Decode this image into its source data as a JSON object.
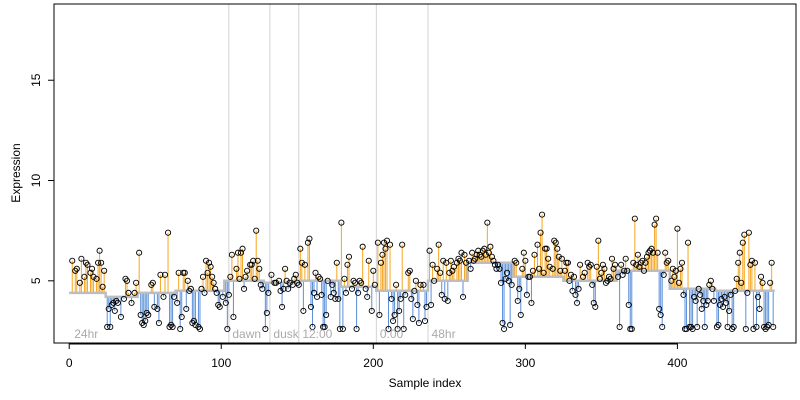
{
  "chart_data": {
    "type": "scatter",
    "title": "",
    "xlabel": "Sample index",
    "ylabel": "Expression",
    "xlim": [
      -10,
      478
    ],
    "ylim": [
      1.9,
      18.8
    ],
    "xticks": [
      0,
      100,
      200,
      300,
      400
    ],
    "yticks": [
      5,
      10,
      15
    ],
    "grid": false,
    "legend": "none",
    "colors": {
      "above": "#f5a623",
      "below": "#5b8fd9",
      "baseline": "#bdbdbd",
      "point_edge": "#000000",
      "annotation_lines": "#d3d3d3",
      "annotation_text": "#aaaaaa"
    },
    "annotations": [
      {
        "label": "24hr",
        "x": 2
      },
      {
        "label": "dawn",
        "x": 106
      },
      {
        "label": "dusk",
        "x": 133
      },
      {
        "label": "12:00",
        "x": 152
      },
      {
        "label": "0:00",
        "x": 203
      },
      {
        "label": "48hr",
        "x": 237
      }
    ],
    "vlines": [
      105,
      132,
      151,
      202,
      236
    ],
    "segments": [
      {
        "x": [
          0,
          24
        ],
        "baseline": 4.4
      },
      {
        "x": [
          24,
          45
        ],
        "baseline": 4.2
      },
      {
        "x": [
          45,
          70
        ],
        "baseline": 4.4
      },
      {
        "x": [
          70,
          102
        ],
        "baseline": 4.5
      },
      {
        "x": [
          102,
          128
        ],
        "baseline": 5.0
      },
      {
        "x": [
          128,
          152
        ],
        "baseline": 4.9
      },
      {
        "x": [
          152,
          178
        ],
        "baseline": 5.0
      },
      {
        "x": [
          178,
          202
        ],
        "baseline": 4.7
      },
      {
        "x": [
          202,
          236
        ],
        "baseline": 4.5
      },
      {
        "x": [
          236,
          262
        ],
        "baseline": 5.0
      },
      {
        "x": [
          262,
          292
        ],
        "baseline": 5.9
      },
      {
        "x": [
          292,
          325
        ],
        "baseline": 5.2
      },
      {
        "x": [
          325,
          360
        ],
        "baseline": 5.0
      },
      {
        "x": [
          360,
          395
        ],
        "baseline": 5.5
      },
      {
        "x": [
          395,
          425
        ],
        "baseline": 4.6
      },
      {
        "x": [
          425,
          464
        ],
        "baseline": 4.5
      }
    ],
    "points": [
      [
        2,
        6.0
      ],
      [
        4,
        5.5
      ],
      [
        5,
        5.6
      ],
      [
        7,
        4.9
      ],
      [
        8,
        6.1
      ],
      [
        10,
        5.2
      ],
      [
        11,
        5.9
      ],
      [
        12,
        5.8
      ],
      [
        14,
        5.4
      ],
      [
        15,
        5.6
      ],
      [
        16,
        5.2
      ],
      [
        18,
        5.1
      ],
      [
        19,
        5.9
      ],
      [
        20,
        6.5
      ],
      [
        21,
        5.9
      ],
      [
        22,
        4.7
      ],
      [
        23,
        5.5
      ],
      [
        25,
        2.7
      ],
      [
        26,
        3.6
      ],
      [
        27,
        2.7
      ],
      [
        28,
        3.8
      ],
      [
        29,
        3.9
      ],
      [
        30,
        3.5
      ],
      [
        31,
        4.0
      ],
      [
        32,
        3.9
      ],
      [
        34,
        3.2
      ],
      [
        36,
        4.1
      ],
      [
        37,
        5.1
      ],
      [
        38,
        5.0
      ],
      [
        39,
        4.4
      ],
      [
        41,
        3.9
      ],
      [
        43,
        4.4
      ],
      [
        44,
        4.9
      ],
      [
        46,
        6.4
      ],
      [
        47,
        3.3
      ],
      [
        48,
        2.9
      ],
      [
        49,
        2.8
      ],
      [
        50,
        3.0
      ],
      [
        51,
        3.4
      ],
      [
        52,
        3.3
      ],
      [
        54,
        4.8
      ],
      [
        55,
        4.9
      ],
      [
        56,
        3.7
      ],
      [
        58,
        3.6
      ],
      [
        59,
        2.9
      ],
      [
        60,
        5.3
      ],
      [
        62,
        4.2
      ],
      [
        63,
        5.3
      ],
      [
        65,
        7.4
      ],
      [
        66,
        2.7
      ],
      [
        67,
        2.8
      ],
      [
        68,
        2.7
      ],
      [
        69,
        4.2
      ],
      [
        71,
        3.9
      ],
      [
        72,
        5.4
      ],
      [
        73,
        2.6
      ],
      [
        74,
        3.2
      ],
      [
        75,
        5.4
      ],
      [
        76,
        5.4
      ],
      [
        77,
        3.6
      ],
      [
        78,
        5.0
      ],
      [
        79,
        4.5
      ],
      [
        80,
        4.6
      ],
      [
        81,
        2.9
      ],
      [
        82,
        3.0
      ],
      [
        83,
        2.8
      ],
      [
        85,
        2.7
      ],
      [
        86,
        2.6
      ],
      [
        87,
        4.6
      ],
      [
        88,
        5.2
      ],
      [
        89,
        4.4
      ],
      [
        90,
        6.0
      ],
      [
        91,
        5.4
      ],
      [
        92,
        5.9
      ],
      [
        93,
        5.7
      ],
      [
        94,
        5.2
      ],
      [
        95,
        4.9
      ],
      [
        96,
        4.6
      ],
      [
        97,
        4.4
      ],
      [
        98,
        3.8
      ],
      [
        99,
        3.7
      ],
      [
        101,
        4.2
      ],
      [
        103,
        3.9
      ],
      [
        104,
        2.6
      ],
      [
        105,
        4.3
      ],
      [
        106,
        5.2
      ],
      [
        107,
        6.3
      ],
      [
        108,
        3.2
      ],
      [
        110,
        5.6
      ],
      [
        111,
        6.4
      ],
      [
        112,
        5.1
      ],
      [
        113,
        6.4
      ],
      [
        114,
        6.6
      ],
      [
        115,
        4.6
      ],
      [
        116,
        5.2
      ],
      [
        117,
        5.5
      ],
      [
        119,
        5.8
      ],
      [
        120,
        5.8
      ],
      [
        121,
        6.0
      ],
      [
        122,
        5.1
      ],
      [
        123,
        7.5
      ],
      [
        124,
        6.0
      ],
      [
        125,
        5.6
      ],
      [
        126,
        4.8
      ],
      [
        127,
        4.6
      ],
      [
        129,
        2.6
      ],
      [
        130,
        3.4
      ],
      [
        131,
        4.4
      ],
      [
        133,
        5.3
      ],
      [
        135,
        4.9
      ],
      [
        136,
        4.9
      ],
      [
        138,
        5.0
      ],
      [
        139,
        4.5
      ],
      [
        140,
        3.7
      ],
      [
        141,
        4.6
      ],
      [
        142,
        5.6
      ],
      [
        143,
        5.0
      ],
      [
        144,
        4.6
      ],
      [
        145,
        4.9
      ],
      [
        147,
        4.8
      ],
      [
        148,
        5.1
      ],
      [
        149,
        5.3
      ],
      [
        150,
        4.9
      ],
      [
        151,
        4.8
      ],
      [
        152,
        6.6
      ],
      [
        153,
        5.9
      ],
      [
        154,
        3.5
      ],
      [
        155,
        5.8
      ],
      [
        157,
        6.9
      ],
      [
        158,
        7.1
      ],
      [
        159,
        3.7
      ],
      [
        160,
        2.7
      ],
      [
        161,
        4.4
      ],
      [
        162,
        5.4
      ],
      [
        163,
        4.2
      ],
      [
        164,
        5.2
      ],
      [
        165,
        5.1
      ],
      [
        166,
        4.3
      ],
      [
        167,
        2.7
      ],
      [
        168,
        2.7
      ],
      [
        169,
        3.3
      ],
      [
        170,
        5.0
      ],
      [
        172,
        4.2
      ],
      [
        173,
        4.8
      ],
      [
        174,
        4.4
      ],
      [
        175,
        4.1
      ],
      [
        176,
        5.9
      ],
      [
        177,
        4.1
      ],
      [
        178,
        2.6
      ],
      [
        179,
        7.9
      ],
      [
        180,
        2.6
      ],
      [
        181,
        5.1
      ],
      [
        182,
        4.4
      ],
      [
        183,
        5.8
      ],
      [
        184,
        6.2
      ],
      [
        186,
        4.6
      ],
      [
        187,
        5.0
      ],
      [
        188,
        4.9
      ],
      [
        189,
        2.6
      ],
      [
        190,
        4.4
      ],
      [
        191,
        5.0
      ],
      [
        192,
        4.9
      ],
      [
        193,
        6.7
      ],
      [
        195,
        4.6
      ],
      [
        196,
        4.2
      ],
      [
        197,
        6.0
      ],
      [
        199,
        3.5
      ],
      [
        200,
        5.5
      ],
      [
        201,
        4.8
      ],
      [
        203,
        6.9
      ],
      [
        204,
        3.3
      ],
      [
        205,
        5.9
      ],
      [
        206,
        6.3
      ],
      [
        207,
        6.9
      ],
      [
        208,
        6.6
      ],
      [
        209,
        7.0
      ],
      [
        210,
        2.6
      ],
      [
        211,
        6.8
      ],
      [
        212,
        4.1
      ],
      [
        213,
        3.0
      ],
      [
        214,
        3.3
      ],
      [
        215,
        4.8
      ],
      [
        216,
        2.6
      ],
      [
        217,
        3.5
      ],
      [
        218,
        4.1
      ],
      [
        219,
        6.8
      ],
      [
        220,
        2.6
      ],
      [
        221,
        4.3
      ],
      [
        223,
        5.4
      ],
      [
        224,
        5.5
      ],
      [
        225,
        4.1
      ],
      [
        226,
        3.1
      ],
      [
        227,
        4.5
      ],
      [
        228,
        5.0
      ],
      [
        229,
        3.8
      ],
      [
        230,
        2.9
      ],
      [
        231,
        4.8
      ],
      [
        233,
        4.8
      ],
      [
        234,
        3.0
      ],
      [
        235,
        3.7
      ],
      [
        237,
        6.5
      ],
      [
        238,
        3.8
      ],
      [
        239,
        5.8
      ],
      [
        240,
        5.0
      ],
      [
        242,
        5.6
      ],
      [
        243,
        6.8
      ],
      [
        244,
        5.4
      ],
      [
        245,
        4.3
      ],
      [
        246,
        6.0
      ],
      [
        247,
        4.1
      ],
      [
        248,
        5.9
      ],
      [
        249,
        4.0
      ],
      [
        250,
        5.4
      ],
      [
        251,
        6.0
      ],
      [
        252,
        5.5
      ],
      [
        253,
        5.7
      ],
      [
        255,
        5.9
      ],
      [
        256,
        6.1
      ],
      [
        257,
        6.0
      ],
      [
        258,
        6.4
      ],
      [
        259,
        4.2
      ],
      [
        260,
        6.3
      ],
      [
        261,
        5.9
      ],
      [
        263,
        6.0
      ],
      [
        264,
        5.6
      ],
      [
        265,
        6.4
      ],
      [
        266,
        6.0
      ],
      [
        267,
        6.1
      ],
      [
        268,
        6.3
      ],
      [
        269,
        6.5
      ],
      [
        270,
        6.3
      ],
      [
        271,
        6.2
      ],
      [
        272,
        6.5
      ],
      [
        273,
        6.6
      ],
      [
        274,
        6.3
      ],
      [
        275,
        7.9
      ],
      [
        276,
        6.4
      ],
      [
        277,
        6.7
      ],
      [
        278,
        6.2
      ],
      [
        279,
        6.0
      ],
      [
        280,
        5.8
      ],
      [
        281,
        5.6
      ],
      [
        282,
        5.8
      ],
      [
        283,
        5.6
      ],
      [
        284,
        4.9
      ],
      [
        285,
        2.9
      ],
      [
        286,
        2.6
      ],
      [
        287,
        5.1
      ],
      [
        288,
        5.4
      ],
      [
        289,
        5.0
      ],
      [
        290,
        2.8
      ],
      [
        291,
        4.8
      ],
      [
        293,
        6.0
      ],
      [
        294,
        5.9
      ],
      [
        295,
        4.0
      ],
      [
        296,
        4.6
      ],
      [
        297,
        3.3
      ],
      [
        298,
        5.6
      ],
      [
        299,
        6.4
      ],
      [
        300,
        6.0
      ],
      [
        301,
        4.3
      ],
      [
        302,
        5.2
      ],
      [
        303,
        5.2
      ],
      [
        304,
        3.9
      ],
      [
        305,
        5.5
      ],
      [
        306,
        6.3
      ],
      [
        308,
        6.8
      ],
      [
        309,
        5.6
      ],
      [
        310,
        7.4
      ],
      [
        311,
        8.3
      ],
      [
        312,
        5.4
      ],
      [
        313,
        6.6
      ],
      [
        314,
        6.6
      ],
      [
        315,
        6.1
      ],
      [
        316,
        5.7
      ],
      [
        318,
        5.6
      ],
      [
        319,
        7.0
      ],
      [
        320,
        6.9
      ],
      [
        321,
        6.6
      ],
      [
        322,
        6.2
      ],
      [
        323,
        5.5
      ],
      [
        324,
        6.1
      ],
      [
        326,
        5.5
      ],
      [
        327,
        5.9
      ],
      [
        328,
        5.9
      ],
      [
        329,
        5.0
      ],
      [
        330,
        5.3
      ],
      [
        331,
        4.5
      ],
      [
        332,
        5.2
      ],
      [
        333,
        4.3
      ],
      [
        334,
        3.9
      ],
      [
        335,
        4.6
      ],
      [
        336,
        5.8
      ],
      [
        338,
        5.2
      ],
      [
        339,
        5.4
      ],
      [
        341,
        5.9
      ],
      [
        342,
        5.7
      ],
      [
        343,
        5.8
      ],
      [
        344,
        4.8
      ],
      [
        345,
        3.9
      ],
      [
        346,
        3.7
      ],
      [
        347,
        5.7
      ],
      [
        348,
        7.0
      ],
      [
        349,
        5.1
      ],
      [
        350,
        5.4
      ],
      [
        351,
        5.8
      ],
      [
        352,
        5.6
      ],
      [
        353,
        4.9
      ],
      [
        354,
        5.0
      ],
      [
        355,
        5.2
      ],
      [
        356,
        5.1
      ],
      [
        357,
        6.1
      ],
      [
        358,
        5.6
      ],
      [
        359,
        5.8
      ],
      [
        361,
        5.2
      ],
      [
        362,
        2.7
      ],
      [
        363,
        5.8
      ],
      [
        364,
        5.3
      ],
      [
        365,
        5.5
      ],
      [
        366,
        6.1
      ],
      [
        367,
        5.5
      ],
      [
        368,
        3.8
      ],
      [
        369,
        2.6
      ],
      [
        370,
        2.6
      ],
      [
        371,
        5.9
      ],
      [
        372,
        8.1
      ],
      [
        373,
        5.8
      ],
      [
        374,
        6.3
      ],
      [
        375,
        5.7
      ],
      [
        376,
        5.9
      ],
      [
        377,
        6.0
      ],
      [
        378,
        5.5
      ],
      [
        379,
        5.9
      ],
      [
        380,
        6.2
      ],
      [
        381,
        6.4
      ],
      [
        382,
        6.5
      ],
      [
        383,
        6.6
      ],
      [
        384,
        6.4
      ],
      [
        385,
        7.8
      ],
      [
        386,
        8.1
      ],
      [
        387,
        6.4
      ],
      [
        388,
        3.6
      ],
      [
        389,
        3.3
      ],
      [
        390,
        2.7
      ],
      [
        391,
        5.3
      ],
      [
        392,
        6.4
      ],
      [
        393,
        5.9
      ],
      [
        394,
        6.0
      ],
      [
        396,
        5.0
      ],
      [
        397,
        5.6
      ],
      [
        398,
        5.2
      ],
      [
        399,
        5.5
      ],
      [
        400,
        7.6
      ],
      [
        401,
        4.9
      ],
      [
        402,
        5.6
      ],
      [
        403,
        5.9
      ],
      [
        404,
        4.3
      ],
      [
        405,
        2.6
      ],
      [
        406,
        2.6
      ],
      [
        407,
        6.9
      ],
      [
        408,
        2.7
      ],
      [
        409,
        2.7
      ],
      [
        410,
        2.6
      ],
      [
        411,
        4.2
      ],
      [
        412,
        4.0
      ],
      [
        413,
        2.7
      ],
      [
        414,
        4.6
      ],
      [
        415,
        4.3
      ],
      [
        416,
        3.6
      ],
      [
        417,
        4.0
      ],
      [
        418,
        2.7
      ],
      [
        419,
        3.8
      ],
      [
        420,
        4.0
      ],
      [
        421,
        4.8
      ],
      [
        422,
        5.0
      ],
      [
        423,
        4.6
      ],
      [
        424,
        4.0
      ],
      [
        426,
        2.7
      ],
      [
        427,
        2.8
      ],
      [
        428,
        3.8
      ],
      [
        429,
        4.1
      ],
      [
        430,
        3.7
      ],
      [
        431,
        4.2
      ],
      [
        432,
        3.9
      ],
      [
        433,
        2.7
      ],
      [
        434,
        3.5
      ],
      [
        435,
        4.3
      ],
      [
        436,
        2.6
      ],
      [
        437,
        2.7
      ],
      [
        438,
        4.5
      ],
      [
        439,
        5.1
      ],
      [
        440,
        5.9
      ],
      [
        441,
        6.4
      ],
      [
        442,
        4.9
      ],
      [
        443,
        6.9
      ],
      [
        444,
        7.3
      ],
      [
        445,
        2.6
      ],
      [
        446,
        4.4
      ],
      [
        447,
        7.4
      ],
      [
        448,
        5.8
      ],
      [
        449,
        6.0
      ],
      [
        450,
        2.6
      ],
      [
        451,
        5.9
      ],
      [
        452,
        2.7
      ],
      [
        453,
        4.2
      ],
      [
        454,
        3.6
      ],
      [
        455,
        5.2
      ],
      [
        456,
        4.9
      ],
      [
        457,
        2.7
      ],
      [
        458,
        2.6
      ],
      [
        459,
        2.7
      ],
      [
        460,
        2.8
      ],
      [
        461,
        4.9
      ],
      [
        462,
        5.9
      ],
      [
        463,
        2.7
      ]
    ]
  }
}
